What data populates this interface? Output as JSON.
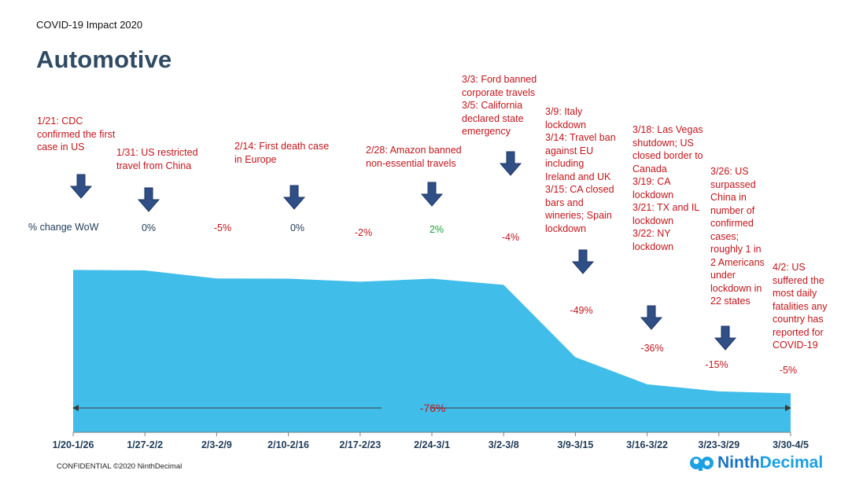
{
  "header": {
    "subtitle": "COVID-19 Impact 2020",
    "title": "Automotive"
  },
  "wow_label": "% change WoW",
  "footer": {
    "confidential": "CONFIDENTIAL ©2020 NinthDecimal",
    "logo_part1": "Ninth",
    "logo_part2": "Decimal"
  },
  "colors": {
    "area": "#41bde9",
    "title": "#2f4a63",
    "negative": "#c0161c",
    "neutral": "#1f3b57",
    "positive": "#1e9e3e",
    "arrow": "#2f4f86"
  },
  "annotations": [
    {
      "text": "1/21: CDC\nconfirmed the first\ncase in US"
    },
    {
      "text": "1/31: US restricted\ntravel from China"
    },
    {
      "text": "2/14: First death case\nin Europe"
    },
    {
      "text": "2/28: Amazon banned\nnon-essential travels"
    },
    {
      "text": "3/3: Ford banned\ncorporate travels\n3/5: California\ndeclared state\nemergency"
    },
    {
      "text": "3/9: Italy\nlockdown\n3/14: Travel ban\nagainst EU\nincluding\nIreland and UK\n3/15: CA closed\nbars and\nwineries; Spain\nlockdown"
    },
    {
      "text": "3/18: Las Vegas\nshutdown; US\nclosed border to\nCanada\n3/19: CA\nlockdown\n3/21: TX and IL\nlockdown\n3/22: NY\nlockdown"
    },
    {
      "text": "3/26: US\nsurpassed\nChina in\nnumber of\nconfirmed\ncases;\nroughly 1 in\n2 Americans\nunder\nlockdown in\n22 states"
    },
    {
      "text": "4/2: US\nsuffered the\nmost daily\nfatalities any\ncountry has\nreported for\nCOVID-19"
    }
  ],
  "chart_data": {
    "type": "area",
    "categories": [
      "1/20-1/26",
      "1/27-2/2",
      "2/3-2/9",
      "2/10-2/16",
      "2/17-2/23",
      "2/24-3/1",
      "3/2-3/8",
      "3/9-3/15",
      "3/16-3/22",
      "3/23-3/29",
      "3/30-4/5"
    ],
    "values": [
      100,
      99.7,
      94.7,
      94.6,
      92.7,
      94.6,
      90.8,
      46.3,
      29.6,
      25.2,
      24.0
    ],
    "ylim": [
      0,
      105
    ],
    "wow_labels": [
      "0%",
      "-5%",
      "0%",
      "-2%",
      "2%",
      "-4%",
      "-49%",
      "-36%",
      "-15%",
      "-5%"
    ],
    "total_change_label": "-76%",
    "grid": false,
    "legend": "none"
  }
}
